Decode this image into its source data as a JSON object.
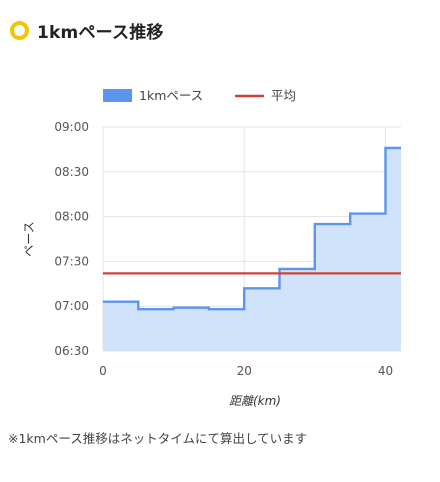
{
  "header": {
    "title": "1kmペース推移",
    "icon": "ring-icon",
    "accent_color": "#f5c400"
  },
  "chart_data": {
    "type": "area",
    "step": true,
    "legend_position": "top-left",
    "series": [
      {
        "name": "1kmペース",
        "color": "#5b95f0",
        "fill": "#cfe0fb",
        "style": "step-area",
        "x": [
          0,
          5,
          10,
          15,
          20,
          25,
          30,
          35,
          40,
          42.2
        ],
        "values": [
          "07:03",
          "06:58",
          "06:59",
          "06:58",
          "07:12",
          "07:25",
          "07:55",
          "08:02",
          "08:46",
          "08:46"
        ]
      },
      {
        "name": "平均",
        "color": "#d0413b",
        "style": "line",
        "x": [
          0,
          42.2
        ],
        "values": [
          "07:22",
          "07:22"
        ]
      }
    ],
    "xlabel": "距離(km)",
    "ylabel": "ペース",
    "xlim": [
      0,
      42.2
    ],
    "ylim": [
      "06:30",
      "09:00"
    ],
    "x_ticks": [
      "0",
      "20",
      "40"
    ],
    "y_ticks": [
      "06:30",
      "07:00",
      "07:30",
      "08:00",
      "08:30",
      "09:00"
    ],
    "grid": true
  },
  "footnote": "※1kmペース推移はネットタイムにて算出しています"
}
